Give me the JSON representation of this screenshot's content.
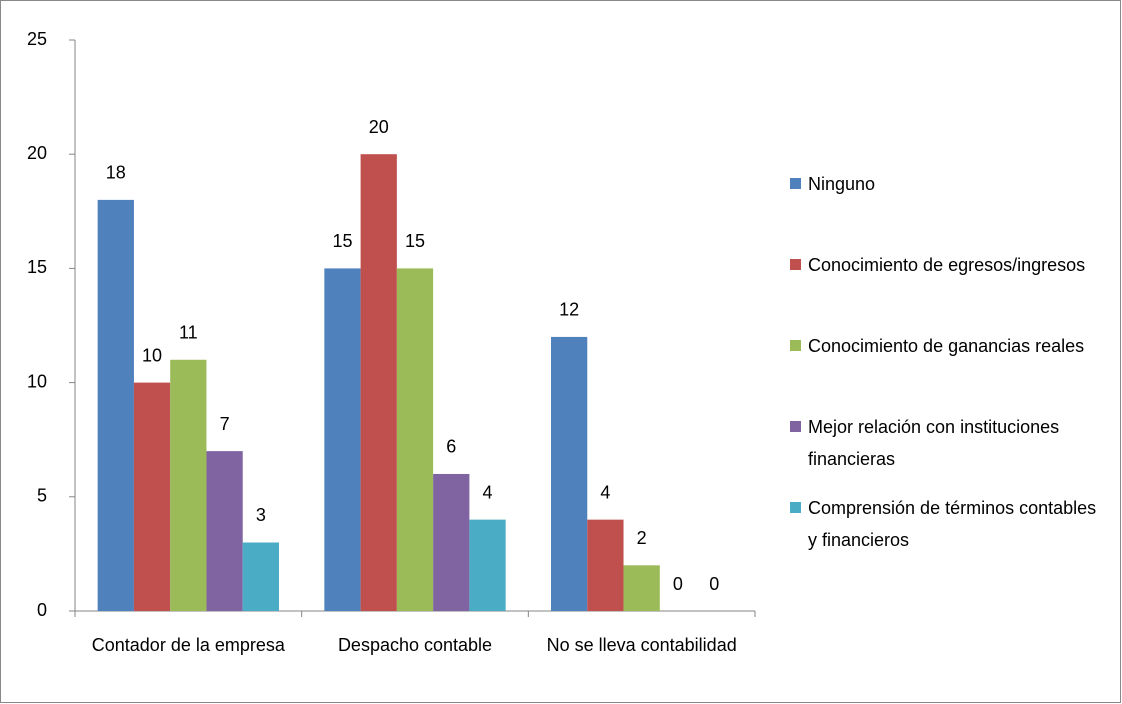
{
  "chart_data": {
    "type": "bar",
    "categories": [
      "Contador de la empresa",
      "Despacho contable",
      "No se lleva contabilidad"
    ],
    "series": [
      {
        "name": "Ninguno",
        "color": "#4f81bd",
        "values": [
          18,
          15,
          12
        ]
      },
      {
        "name": "Conocimiento de egresos/ingresos",
        "color": "#c0504d",
        "values": [
          10,
          20,
          4
        ]
      },
      {
        "name": "Conocimiento de ganancias reales",
        "color": "#9bbb59",
        "values": [
          11,
          15,
          2
        ]
      },
      {
        "name": "Mejor relación con instituciones financieras",
        "color": "#8064a2",
        "values": [
          7,
          6,
          0
        ]
      },
      {
        "name": "Comprensión de términos contables y financieros",
        "color": "#4bacc6",
        "values": [
          3,
          4,
          0
        ]
      }
    ],
    "ylim": [
      0,
      25
    ],
    "yticks": [
      0,
      5,
      10,
      15,
      20,
      25
    ],
    "grid": false,
    "legend": "right"
  }
}
